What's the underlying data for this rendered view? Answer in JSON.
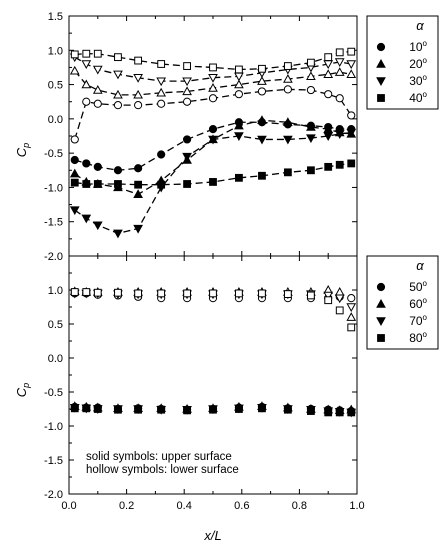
{
  "chart_data": [
    {
      "type": "line",
      "panel": "top",
      "xlim": [
        0.0,
        1.0
      ],
      "ylim": [
        -2.0,
        1.5
      ],
      "yticks": [
        "1.5",
        "1.0",
        "0.5",
        "0.0",
        "-0.5",
        "-1.0",
        "-1.5",
        "-2.0"
      ],
      "xticks": [],
      "ylabel": "C",
      "ylabel_sub": "p",
      "legend_title": "α",
      "legend_position": "right-top",
      "series": [
        {
          "name": "10",
          "name_sup": "o",
          "marker": "circle",
          "surface": "upper",
          "filled": true,
          "dashed": true,
          "x": [
            0.02,
            0.06,
            0.1,
            0.17,
            0.24,
            0.32,
            0.41,
            0.5,
            0.59,
            0.67,
            0.76,
            0.84,
            0.9,
            0.94,
            0.98
          ],
          "y": [
            -0.6,
            -0.65,
            -0.7,
            -0.75,
            -0.72,
            -0.52,
            -0.3,
            -0.15,
            -0.05,
            -0.05,
            -0.08,
            -0.1,
            -0.12,
            -0.15,
            -0.15
          ]
        },
        {
          "name": "20",
          "name_sup": "o",
          "marker": "triangle-up",
          "surface": "upper",
          "filled": true,
          "dashed": true,
          "x": [
            0.02,
            0.06,
            0.1,
            0.17,
            0.24,
            0.32,
            0.41,
            0.5,
            0.59,
            0.67,
            0.76,
            0.84,
            0.9,
            0.94,
            0.98
          ],
          "y": [
            -0.8,
            -0.92,
            -0.95,
            -1.0,
            -1.1,
            -0.9,
            -0.6,
            -0.3,
            -0.1,
            -0.02,
            -0.05,
            -0.12,
            -0.15,
            -0.2,
            -0.22
          ]
        },
        {
          "name": "30",
          "name_sup": "o",
          "marker": "triangle-down",
          "surface": "upper",
          "filled": true,
          "dashed": true,
          "x": [
            0.02,
            0.06,
            0.1,
            0.17,
            0.24,
            0.32,
            0.41,
            0.5,
            0.59,
            0.67,
            0.76,
            0.84,
            0.9,
            0.94,
            0.98
          ],
          "y": [
            -1.33,
            -1.45,
            -1.55,
            -1.67,
            -1.6,
            -1.0,
            -0.55,
            -0.3,
            -0.25,
            -0.3,
            -0.3,
            -0.28,
            -0.25,
            -0.22,
            -0.2
          ]
        },
        {
          "name": "40",
          "name_sup": "o",
          "marker": "square",
          "surface": "upper",
          "filled": true,
          "dashed": true,
          "x": [
            0.02,
            0.06,
            0.1,
            0.17,
            0.24,
            0.32,
            0.41,
            0.5,
            0.59,
            0.67,
            0.76,
            0.84,
            0.9,
            0.94,
            0.98
          ],
          "y": [
            -0.93,
            -0.95,
            -0.95,
            -0.95,
            -0.96,
            -0.96,
            -0.95,
            -0.92,
            -0.86,
            -0.83,
            -0.78,
            -0.75,
            -0.7,
            -0.67,
            -0.65
          ]
        },
        {
          "name": "",
          "marker": "circle",
          "surface": "lower",
          "filled": false,
          "dashed": true,
          "x": [
            0.02,
            0.06,
            0.1,
            0.17,
            0.24,
            0.32,
            0.41,
            0.5,
            0.59,
            0.67,
            0.76,
            0.84,
            0.9,
            0.94,
            0.98
          ],
          "y": [
            -0.3,
            0.25,
            0.22,
            0.2,
            0.2,
            0.22,
            0.25,
            0.3,
            0.36,
            0.4,
            0.43,
            0.42,
            0.36,
            0.3,
            0.05
          ]
        },
        {
          "name": "",
          "marker": "triangle-up",
          "surface": "lower",
          "filled": false,
          "dashed": true,
          "x": [
            0.02,
            0.06,
            0.1,
            0.17,
            0.24,
            0.32,
            0.41,
            0.5,
            0.59,
            0.67,
            0.76,
            0.84,
            0.9,
            0.94,
            0.98
          ],
          "y": [
            0.7,
            0.5,
            0.42,
            0.35,
            0.35,
            0.38,
            0.4,
            0.45,
            0.5,
            0.55,
            0.58,
            0.62,
            0.65,
            0.68,
            0.65
          ]
        },
        {
          "name": "",
          "marker": "triangle-down",
          "surface": "lower",
          "filled": false,
          "dashed": true,
          "x": [
            0.02,
            0.06,
            0.1,
            0.17,
            0.24,
            0.32,
            0.41,
            0.5,
            0.59,
            0.67,
            0.76,
            0.84,
            0.9,
            0.94,
            0.98
          ],
          "y": [
            0.9,
            0.8,
            0.72,
            0.65,
            0.6,
            0.55,
            0.55,
            0.6,
            0.62,
            0.67,
            0.72,
            0.75,
            0.8,
            0.83,
            0.8
          ]
        },
        {
          "name": "",
          "marker": "square",
          "surface": "lower",
          "filled": false,
          "dashed": true,
          "x": [
            0.02,
            0.06,
            0.1,
            0.17,
            0.24,
            0.32,
            0.41,
            0.5,
            0.59,
            0.67,
            0.76,
            0.84,
            0.9,
            0.94,
            0.98
          ],
          "y": [
            0.94,
            0.95,
            0.95,
            0.9,
            0.85,
            0.8,
            0.77,
            0.75,
            0.72,
            0.73,
            0.77,
            0.82,
            0.9,
            0.97,
            0.98
          ]
        }
      ]
    },
    {
      "type": "scatter",
      "panel": "bottom",
      "xlim": [
        0.0,
        1.0
      ],
      "ylim": [
        -2.0,
        1.5
      ],
      "yticks": [
        "1.5",
        "1.0",
        "0.5",
        "0.0",
        "-0.5",
        "-1.0",
        "-1.5",
        "-2.0"
      ],
      "xticks": [
        "0.0",
        "0.2",
        "0.4",
        "0.6",
        "0.8",
        "1.0"
      ],
      "xlabel": "x/L",
      "ylabel": "C",
      "ylabel_sub": "p",
      "legend_title": "α",
      "legend_position": "right-top",
      "annotations": [
        "solid symbols: upper surface",
        "hollow symbols: lower surface"
      ],
      "series": [
        {
          "name": "50",
          "name_sup": "o",
          "marker": "circle",
          "surface": "upper",
          "filled": true,
          "x": [
            0.02,
            0.06,
            0.1,
            0.17,
            0.24,
            0.32,
            0.41,
            0.5,
            0.59,
            0.67,
            0.76,
            0.84,
            0.9,
            0.94,
            0.98
          ],
          "y": [
            -0.72,
            -0.73,
            -0.73,
            -0.75,
            -0.74,
            -0.75,
            -0.76,
            -0.75,
            -0.73,
            -0.72,
            -0.74,
            -0.75,
            -0.76,
            -0.77,
            -0.78
          ]
        },
        {
          "name": "60",
          "name_sup": "o",
          "marker": "triangle-up",
          "surface": "upper",
          "filled": true,
          "x": [
            0.02,
            0.06,
            0.1,
            0.17,
            0.24,
            0.32,
            0.41,
            0.5,
            0.59,
            0.67,
            0.76,
            0.84,
            0.9,
            0.94,
            0.98
          ],
          "y": [
            -0.71,
            -0.72,
            -0.73,
            -0.74,
            -0.74,
            -0.74,
            -0.75,
            -0.74,
            -0.72,
            -0.71,
            -0.73,
            -0.75,
            -0.76,
            -0.77,
            -0.76
          ]
        },
        {
          "name": "70",
          "name_sup": "o",
          "marker": "triangle-down",
          "surface": "upper",
          "filled": true,
          "x": [
            0.02,
            0.06,
            0.1,
            0.17,
            0.24,
            0.32,
            0.41,
            0.5,
            0.59,
            0.67,
            0.76,
            0.84,
            0.9,
            0.94,
            0.98
          ],
          "y": [
            -0.73,
            -0.74,
            -0.75,
            -0.75,
            -0.75,
            -0.76,
            -0.76,
            -0.75,
            -0.74,
            -0.73,
            -0.75,
            -0.76,
            -0.78,
            -0.79,
            -0.8
          ]
        },
        {
          "name": "80",
          "name_sup": "o",
          "marker": "square",
          "surface": "upper",
          "filled": true,
          "x": [
            0.02,
            0.06,
            0.1,
            0.17,
            0.24,
            0.32,
            0.41,
            0.5,
            0.59,
            0.67,
            0.76,
            0.84,
            0.9,
            0.94,
            0.98
          ],
          "y": [
            -0.74,
            -0.74,
            -0.75,
            -0.76,
            -0.76,
            -0.76,
            -0.77,
            -0.76,
            -0.75,
            -0.74,
            -0.76,
            -0.78,
            -0.8,
            -0.8,
            -0.8
          ]
        },
        {
          "name": "",
          "marker": "circle",
          "surface": "lower",
          "filled": false,
          "x": [
            0.02,
            0.06,
            0.1,
            0.17,
            0.24,
            0.32,
            0.41,
            0.5,
            0.59,
            0.67,
            0.76,
            0.84,
            0.9,
            0.94,
            0.98
          ],
          "y": [
            0.95,
            0.95,
            0.93,
            0.92,
            0.9,
            0.88,
            0.88,
            0.88,
            0.88,
            0.88,
            0.88,
            0.88,
            0.88,
            0.9,
            0.88
          ]
        },
        {
          "name": "",
          "marker": "triangle-up",
          "surface": "lower",
          "filled": false,
          "x": [
            0.02,
            0.06,
            0.1,
            0.17,
            0.24,
            0.32,
            0.41,
            0.5,
            0.59,
            0.67,
            0.76,
            0.84,
            0.9,
            0.94,
            0.98
          ],
          "y": [
            0.98,
            0.97,
            0.97,
            0.97,
            0.97,
            0.97,
            0.97,
            0.97,
            0.97,
            0.97,
            0.97,
            0.97,
            1.0,
            0.97,
            0.6
          ]
        },
        {
          "name": "",
          "marker": "triangle-down",
          "surface": "lower",
          "filled": false,
          "x": [
            0.02,
            0.06,
            0.1,
            0.17,
            0.24,
            0.32,
            0.41,
            0.5,
            0.59,
            0.67,
            0.76,
            0.84,
            0.9,
            0.94,
            0.98
          ],
          "y": [
            0.95,
            0.95,
            0.95,
            0.94,
            0.94,
            0.94,
            0.94,
            0.94,
            0.94,
            0.94,
            0.94,
            0.94,
            0.92,
            0.88,
            0.75
          ]
        },
        {
          "name": "",
          "marker": "square",
          "surface": "lower",
          "filled": false,
          "x": [
            0.02,
            0.06,
            0.1,
            0.17,
            0.24,
            0.32,
            0.41,
            0.5,
            0.59,
            0.67,
            0.76,
            0.84,
            0.9,
            0.94,
            0.98
          ],
          "y": [
            0.97,
            0.97,
            0.96,
            0.96,
            0.95,
            0.95,
            0.95,
            0.95,
            0.95,
            0.95,
            0.94,
            0.92,
            0.85,
            0.7,
            0.45
          ]
        }
      ]
    }
  ]
}
